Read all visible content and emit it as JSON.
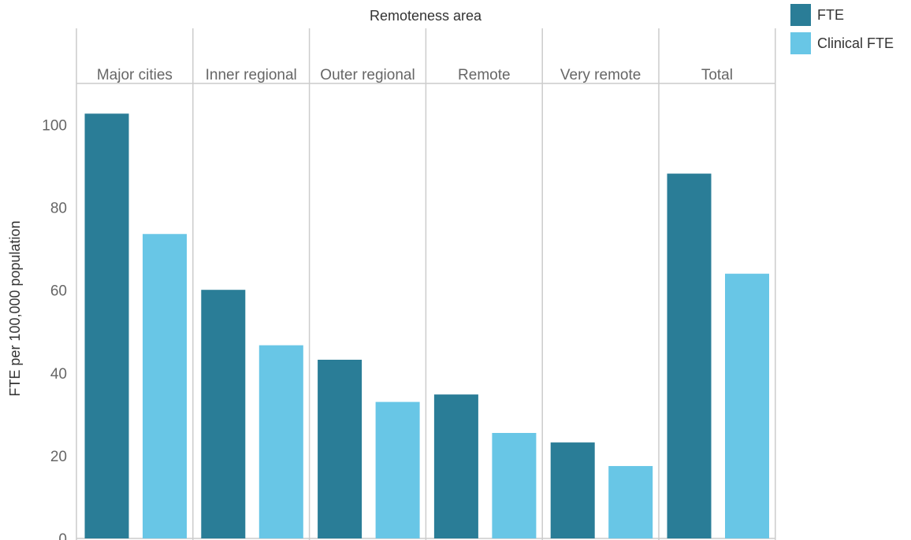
{
  "chart_data": {
    "type": "bar",
    "title": "Remoteness area",
    "xlabel": "",
    "ylabel": "FTE per 100,000 population",
    "categories": [
      "Major cities",
      "Inner regional",
      "Outer regional",
      "Remote",
      "Very remote",
      "Total"
    ],
    "series": [
      {
        "name": "FTE",
        "color": "#2a7d97",
        "values": [
          102.7,
          60.1,
          43.2,
          34.8,
          23.2,
          88.2
        ]
      },
      {
        "name": "Clinical FTE",
        "color": "#68c6e6",
        "values": [
          73.6,
          46.7,
          33.0,
          25.5,
          17.5,
          64.0
        ]
      }
    ],
    "ylim": [
      0,
      110
    ],
    "yticks": [
      0,
      20,
      40,
      60,
      80,
      100
    ],
    "grid": false,
    "legend_position": "top-right",
    "facet_divider_color": "#cccccc"
  }
}
